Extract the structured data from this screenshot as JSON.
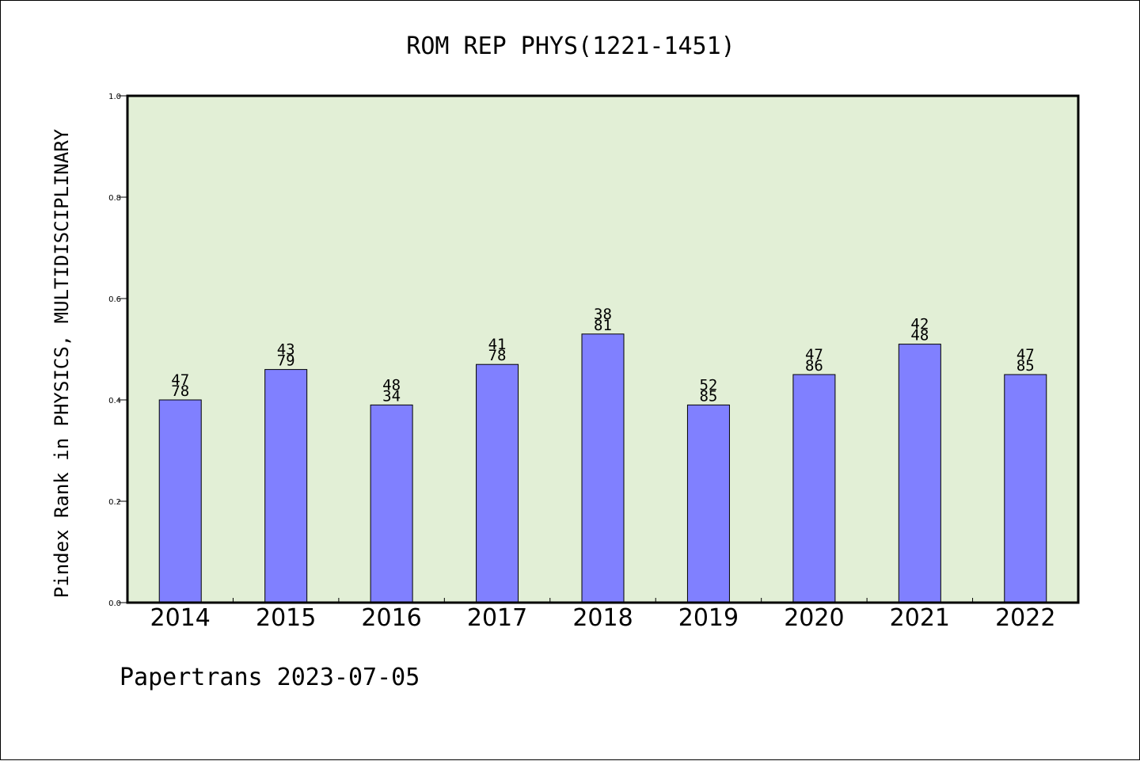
{
  "title": "ROM REP PHYS(1221-1451)",
  "footer": "Papertrans 2023-07-05",
  "colors": {
    "plot_background": "#e2efd6",
    "bar_fill": "#8080ff",
    "axis": "#000000",
    "page_background": "#ffffff"
  },
  "chart_data": {
    "type": "bar",
    "title": "ROM REP PHYS(1221-1451)",
    "xlabel": "",
    "ylabel": "Pindex Rank in PHYSICS, MULTIDISCIPLINARY",
    "ylim": [
      0.0,
      1.0
    ],
    "yticks": [
      "0.0",
      "0.2",
      "0.4",
      "0.6",
      "0.8",
      "1.0"
    ],
    "grid": false,
    "categories": [
      "2014",
      "2015",
      "2016",
      "2017",
      "2018",
      "2019",
      "2020",
      "2021",
      "2022"
    ],
    "values": [
      0.4,
      0.46,
      0.39,
      0.47,
      0.53,
      0.39,
      0.45,
      0.51,
      0.45
    ],
    "bar_labels_top": [
      "47",
      "43",
      "48",
      "41",
      "38",
      "52",
      "47",
      "42",
      "47"
    ],
    "bar_labels_bottom": [
      "78",
      "79",
      "34",
      "78",
      "81",
      "85",
      "86",
      "48",
      "85"
    ]
  }
}
